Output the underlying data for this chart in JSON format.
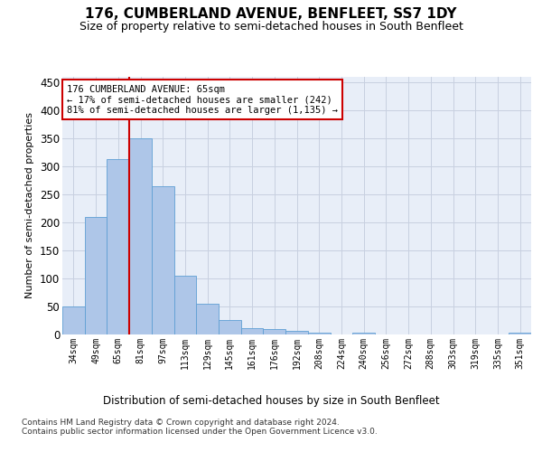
{
  "title": "176, CUMBERLAND AVENUE, BENFLEET, SS7 1DY",
  "subtitle": "Size of property relative to semi-detached houses in South Benfleet",
  "xlabel": "Distribution of semi-detached houses by size in South Benfleet",
  "ylabel": "Number of semi-detached properties",
  "categories": [
    "34sqm",
    "49sqm",
    "65sqm",
    "81sqm",
    "97sqm",
    "113sqm",
    "129sqm",
    "145sqm",
    "161sqm",
    "176sqm",
    "192sqm",
    "208sqm",
    "224sqm",
    "240sqm",
    "256sqm",
    "272sqm",
    "288sqm",
    "303sqm",
    "319sqm",
    "335sqm",
    "351sqm"
  ],
  "values": [
    50,
    210,
    313,
    350,
    265,
    105,
    55,
    26,
    11,
    10,
    7,
    4,
    0,
    3,
    0,
    0,
    0,
    0,
    0,
    0,
    3
  ],
  "bar_color": "#aec6e8",
  "bar_edge_color": "#5f9fd4",
  "vline_x_index": 2,
  "vline_color": "#cc0000",
  "annotation_text": "176 CUMBERLAND AVENUE: 65sqm\n← 17% of semi-detached houses are smaller (242)\n81% of semi-detached houses are larger (1,135) →",
  "annotation_box_color": "#ffffff",
  "annotation_box_edge": "#cc0000",
  "ylim": [
    0,
    460
  ],
  "yticks": [
    0,
    50,
    100,
    150,
    200,
    250,
    300,
    350,
    400,
    450
  ],
  "footer": "Contains HM Land Registry data © Crown copyright and database right 2024.\nContains public sector information licensed under the Open Government Licence v3.0.",
  "bg_color": "#e8eef8",
  "grid_color": "#c8d0e0",
  "title_fontsize": 11,
  "subtitle_fontsize": 9,
  "ylabel_fontsize": 8,
  "xlabel_fontsize": 8.5,
  "footer_fontsize": 6.5
}
